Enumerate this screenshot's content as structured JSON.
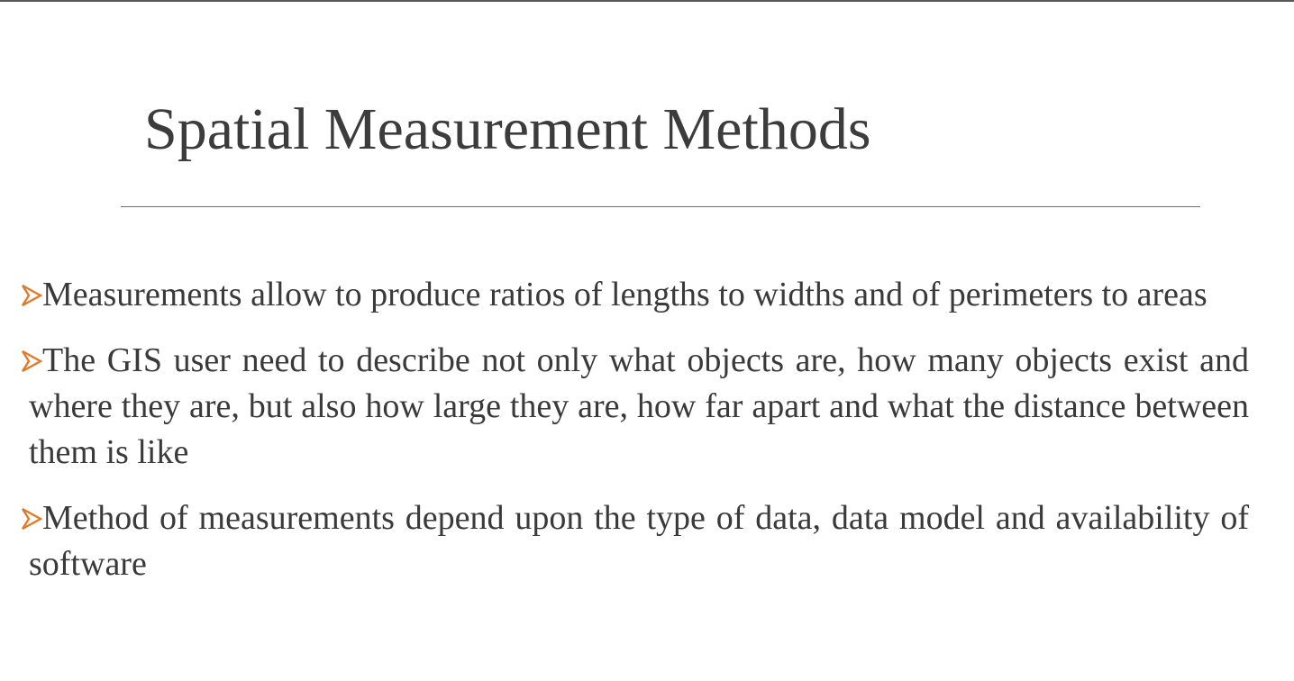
{
  "slide": {
    "title": "Spatial Measurement Methods",
    "bullets": [
      {
        "marker_icon": "arrowhead-bullet-icon",
        "text": "Measurements allow to produce ratios of lengths to widths and of perimeters to areas"
      },
      {
        "marker_icon": "arrowhead-bullet-icon",
        "text": "The GIS user need to describe not only what objects are, how many objects exist and where they are, but also how large they are, how far apart and what the distance between them is like"
      },
      {
        "marker_icon": "arrowhead-bullet-icon",
        "text": "Method of measurements depend upon the type of data, data model and availability of software"
      }
    ]
  },
  "colors": {
    "bullet_accent": "#e07b2a",
    "text": "#3a3a3a",
    "rule": "#6e6e6e"
  }
}
